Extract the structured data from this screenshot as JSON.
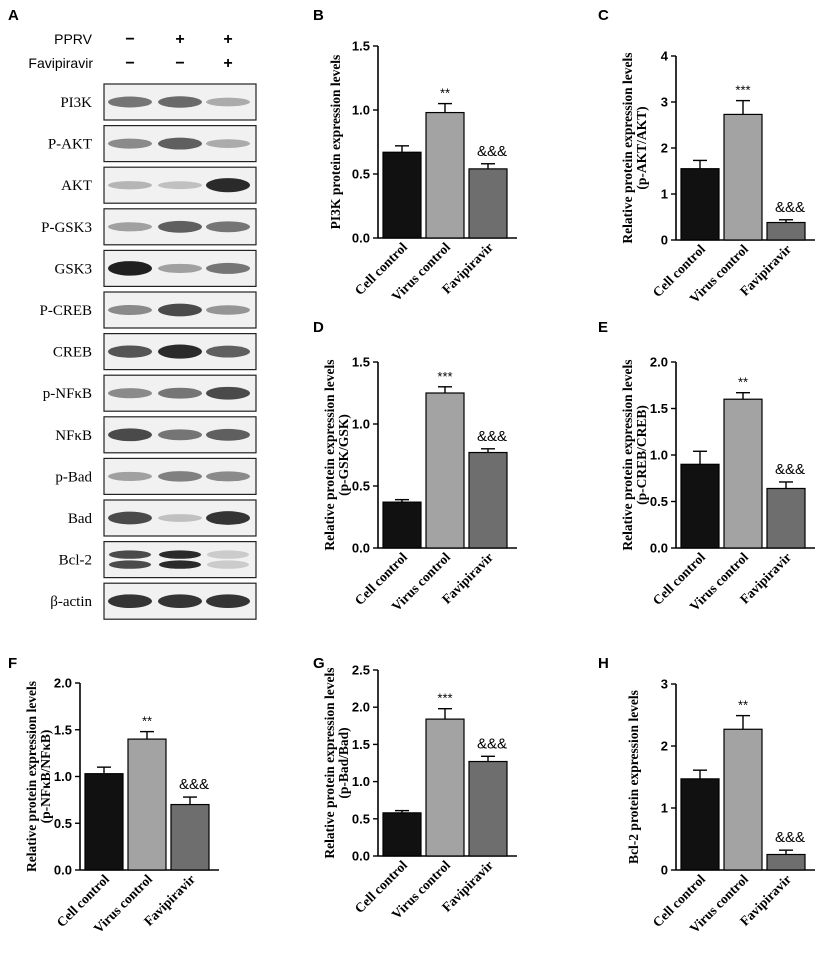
{
  "western_blot": {
    "panel_letter": "A",
    "treatments": [
      {
        "label": "PPRV",
        "signs": [
          "−",
          "+",
          "+"
        ]
      },
      {
        "label": "Favipiravir",
        "signs": [
          "−",
          "−",
          "+"
        ]
      }
    ],
    "proteins": [
      {
        "label": "PI3K",
        "bands": [
          0.55,
          0.6,
          0.3
        ],
        "double": false
      },
      {
        "label": "P-AKT",
        "bands": [
          0.45,
          0.65,
          0.3
        ],
        "double": false
      },
      {
        "label": "AKT",
        "bands": [
          0.25,
          0.2,
          0.9
        ],
        "double": false
      },
      {
        "label": "P-GSK3",
        "bands": [
          0.35,
          0.65,
          0.55
        ],
        "double": false
      },
      {
        "label": "GSK3",
        "bands": [
          0.95,
          0.35,
          0.55
        ],
        "double": false
      },
      {
        "label": "P-CREB",
        "bands": [
          0.45,
          0.75,
          0.4
        ],
        "double": false
      },
      {
        "label": "CREB",
        "bands": [
          0.7,
          0.9,
          0.65
        ],
        "double": false
      },
      {
        "label": "p-NFκB",
        "bands": [
          0.45,
          0.55,
          0.75
        ],
        "double": false
      },
      {
        "label": "NFκB",
        "bands": [
          0.75,
          0.55,
          0.65
        ],
        "double": false
      },
      {
        "label": "p-Bad",
        "bands": [
          0.35,
          0.5,
          0.45
        ],
        "double": false
      },
      {
        "label": "Bad",
        "bands": [
          0.75,
          0.2,
          0.85
        ],
        "double": false
      },
      {
        "label": "Bcl-2",
        "bands": [
          0.75,
          0.9,
          0.15
        ],
        "double": true
      },
      {
        "label": "β-actin",
        "bands": [
          0.85,
          0.85,
          0.85
        ],
        "double": false
      }
    ]
  },
  "bar_colors": [
    "#111111",
    "#a3a3a3",
    "#6e6e6e"
  ],
  "chart_data": [
    {
      "letter": "B",
      "type": "bar",
      "ylabel": "PI3K protein expression levels",
      "categories": [
        "Cell control",
        "Virus control",
        "Favipiravir"
      ],
      "values": [
        0.67,
        0.98,
        0.54
      ],
      "errors": [
        0.05,
        0.07,
        0.04
      ],
      "annotations": [
        "",
        "**",
        "&&&"
      ],
      "ylim": [
        0,
        1.5
      ],
      "yticks": [
        "0.0",
        "0.5",
        "1.0",
        "1.5"
      ]
    },
    {
      "letter": "C",
      "type": "bar",
      "ylabel": "Relative protein expression levels",
      "ylabel2": "(p-AKT/AKT)",
      "categories": [
        "Cell control",
        "Virus control",
        "Favipiravir"
      ],
      "values": [
        1.55,
        2.73,
        0.38
      ],
      "errors": [
        0.18,
        0.3,
        0.06
      ],
      "annotations": [
        "",
        "***",
        "&&&"
      ],
      "ylim": [
        0,
        4
      ],
      "yticks": [
        "0",
        "1",
        "2",
        "3",
        "4"
      ]
    },
    {
      "letter": "D",
      "type": "bar",
      "ylabel": "Relative protein expression levels",
      "ylabel2": "(p-GSK/GSK)",
      "categories": [
        "Cell control",
        "Virus control",
        "Favipiravir"
      ],
      "values": [
        0.37,
        1.25,
        0.77
      ],
      "errors": [
        0.02,
        0.05,
        0.03
      ],
      "annotations": [
        "",
        "***",
        "&&&"
      ],
      "ylim": [
        0,
        1.5
      ],
      "yticks": [
        "0.0",
        "0.5",
        "1.0",
        "1.5"
      ]
    },
    {
      "letter": "E",
      "type": "bar",
      "ylabel": "Relative protein expression levels",
      "ylabel2": "(p-CREB/CREB)",
      "categories": [
        "Cell control",
        "Virus control",
        "Favipiravir"
      ],
      "values": [
        0.9,
        1.6,
        0.64
      ],
      "errors": [
        0.14,
        0.07,
        0.07
      ],
      "annotations": [
        "",
        "**",
        "&&&"
      ],
      "ylim": [
        0,
        2.0
      ],
      "yticks": [
        "0.0",
        "0.5",
        "1.0",
        "1.5",
        "2.0"
      ]
    },
    {
      "letter": "F",
      "type": "bar",
      "ylabel": "Relative protein expression levels",
      "ylabel2": "(p-NFκB/NFκB)",
      "categories": [
        "Cell control",
        "Virus control",
        "Favipiravir"
      ],
      "values": [
        1.03,
        1.4,
        0.7
      ],
      "errors": [
        0.07,
        0.08,
        0.08
      ],
      "annotations": [
        "",
        "**",
        "&&&"
      ],
      "ylim": [
        0,
        2.0
      ],
      "yticks": [
        "0.0",
        "0.5",
        "1.0",
        "1.5",
        "2.0"
      ]
    },
    {
      "letter": "G",
      "type": "bar",
      "ylabel": "Relative protein expression levels",
      "ylabel2": "(p-Bad/Bad)",
      "categories": [
        "Cell control",
        "Virus control",
        "Favipiravir"
      ],
      "values": [
        0.58,
        1.84,
        1.27
      ],
      "errors": [
        0.03,
        0.14,
        0.07
      ],
      "annotations": [
        "",
        "***",
        "&&&"
      ],
      "ylim": [
        0,
        2.5
      ],
      "yticks": [
        "0.0",
        "0.5",
        "1.0",
        "1.5",
        "2.0",
        "2.5"
      ]
    },
    {
      "letter": "H",
      "type": "bar",
      "ylabel": "Bcl-2 protein expression levels",
      "categories": [
        "Cell control",
        "Virus control",
        "Favipiravir"
      ],
      "values": [
        1.47,
        2.27,
        0.25
      ],
      "errors": [
        0.14,
        0.22,
        0.07
      ],
      "annotations": [
        "",
        "**",
        "&&&"
      ],
      "ylim": [
        0,
        3
      ],
      "yticks": [
        "0",
        "1",
        "2",
        "3"
      ]
    }
  ]
}
